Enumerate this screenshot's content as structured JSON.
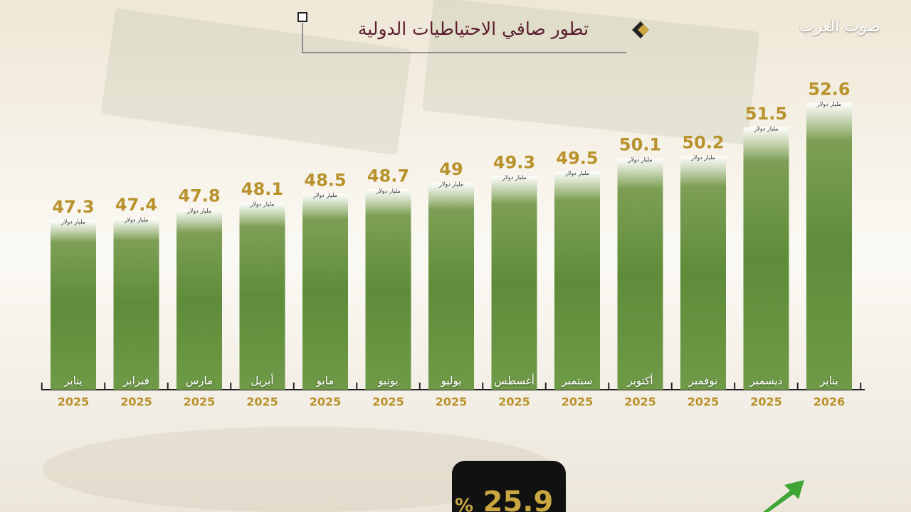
{
  "brand": "صوت العرب",
  "chart_data": {
    "type": "bar",
    "title": "تطور صافي الاحتياطيات الدولية",
    "categories": [
      "يناير",
      "فبراير",
      "مارس",
      "أبريل",
      "مايو",
      "يونيو",
      "يوليو",
      "أغسطس",
      "سبتمبر",
      "أكتوبر",
      "نوفمبر",
      "ديسمبر",
      "يناير"
    ],
    "years": [
      "2025",
      "2025",
      "2025",
      "2025",
      "2025",
      "2025",
      "2025",
      "2025",
      "2025",
      "2025",
      "2025",
      "2025",
      "2026"
    ],
    "values": [
      47.3,
      47.4,
      47.8,
      48.1,
      48.5,
      48.7,
      49,
      49.3,
      49.5,
      50.1,
      50.2,
      51.5,
      52.6
    ],
    "value_unit": "مليار دولار",
    "color": "#5f8c3a",
    "ylim": [
      40,
      53
    ]
  },
  "highlight": {
    "value": "25.9",
    "unit": "%"
  }
}
